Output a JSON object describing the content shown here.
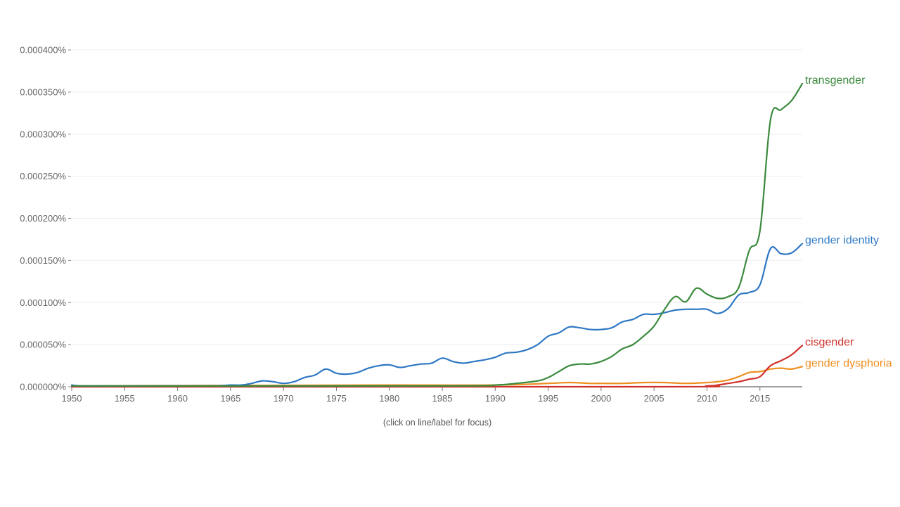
{
  "hint_text": "(click on line/label for focus)",
  "chart_data": {
    "type": "line",
    "title": "",
    "xlabel": "",
    "ylabel": "",
    "xlim": [
      1950,
      2019
    ],
    "ylim": [
      0,
      0.0004
    ],
    "grid": true,
    "legend": "labels at line ends, right",
    "y_ticks": [
      {
        "value": 0.0,
        "label": "0.000000%"
      },
      {
        "value": 5e-05,
        "label": "0.000050%"
      },
      {
        "value": 0.0001,
        "label": "0.000100%"
      },
      {
        "value": 0.00015,
        "label": "0.000150%"
      },
      {
        "value": 0.0002,
        "label": "0.000200%"
      },
      {
        "value": 0.00025,
        "label": "0.000250%"
      },
      {
        "value": 0.0003,
        "label": "0.000300%"
      },
      {
        "value": 0.00035,
        "label": "0.000350%"
      },
      {
        "value": 0.0004,
        "label": "0.000400%"
      }
    ],
    "x_ticks": [
      {
        "value": 1950,
        "label": "1950"
      },
      {
        "value": 1955,
        "label": "1955"
      },
      {
        "value": 1960,
        "label": "1960"
      },
      {
        "value": 1965,
        "label": "1965"
      },
      {
        "value": 1970,
        "label": "1970"
      },
      {
        "value": 1975,
        "label": "1975"
      },
      {
        "value": 1980,
        "label": "1980"
      },
      {
        "value": 1985,
        "label": "1985"
      },
      {
        "value": 1990,
        "label": "1990"
      },
      {
        "value": 1995,
        "label": "1995"
      },
      {
        "value": 2000,
        "label": "2000"
      },
      {
        "value": 2005,
        "label": "2005"
      },
      {
        "value": 2010,
        "label": "2010"
      },
      {
        "value": 2015,
        "label": "2015"
      }
    ],
    "series": [
      {
        "name": "transgender",
        "color": "#3b8a3e",
        "points": [
          [
            1950,
            1e-06
          ],
          [
            1985,
            1e-06
          ],
          [
            1990,
            2e-06
          ],
          [
            1992,
            4e-06
          ],
          [
            1994,
            7e-06
          ],
          [
            1995,
            1.1e-05
          ],
          [
            1996,
            1.8e-05
          ],
          [
            1997,
            2.5e-05
          ],
          [
            1998,
            2.7e-05
          ],
          [
            1999,
            2.7e-05
          ],
          [
            2000,
            3e-05
          ],
          [
            2001,
            3.6e-05
          ],
          [
            2002,
            4.5e-05
          ],
          [
            2003,
            5e-05
          ],
          [
            2004,
            6e-05
          ],
          [
            2005,
            7.2e-05
          ],
          [
            2006,
            9.2e-05
          ],
          [
            2007,
            0.000107
          ],
          [
            2008,
            0.000101
          ],
          [
            2009,
            0.000117
          ],
          [
            2010,
            0.00011
          ],
          [
            2011,
            0.000105
          ],
          [
            2012,
            0.000107
          ],
          [
            2013,
            0.000118
          ],
          [
            2014,
            0.000162
          ],
          [
            2015,
            0.000185
          ],
          [
            2016,
            0.000317
          ],
          [
            2017,
            0.000329
          ],
          [
            2018,
            0.00034
          ],
          [
            2019,
            0.00036
          ]
        ]
      },
      {
        "name": "gender identity",
        "color": "#2f78c4",
        "points": [
          [
            1950,
            2e-06
          ],
          [
            1951,
            1e-06
          ],
          [
            1955,
            1e-06
          ],
          [
            1963,
            1e-06
          ],
          [
            1965,
            2e-06
          ],
          [
            1966,
            2e-06
          ],
          [
            1967,
            4e-06
          ],
          [
            1968,
            7e-06
          ],
          [
            1969,
            6e-06
          ],
          [
            1970,
            4e-06
          ],
          [
            1971,
            6e-06
          ],
          [
            1972,
            1.1e-05
          ],
          [
            1973,
            1.4e-05
          ],
          [
            1974,
            2.1e-05
          ],
          [
            1975,
            1.6e-05
          ],
          [
            1976,
            1.5e-05
          ],
          [
            1977,
            1.7e-05
          ],
          [
            1978,
            2.2e-05
          ],
          [
            1979,
            2.5e-05
          ],
          [
            1980,
            2.6e-05
          ],
          [
            1981,
            2.3e-05
          ],
          [
            1982,
            2.5e-05
          ],
          [
            1983,
            2.7e-05
          ],
          [
            1984,
            2.8e-05
          ],
          [
            1985,
            3.4e-05
          ],
          [
            1986,
            3e-05
          ],
          [
            1987,
            2.8e-05
          ],
          [
            1988,
            3e-05
          ],
          [
            1989,
            3.2e-05
          ],
          [
            1990,
            3.5e-05
          ],
          [
            1991,
            4e-05
          ],
          [
            1992,
            4.1e-05
          ],
          [
            1993,
            4.4e-05
          ],
          [
            1994,
            5e-05
          ],
          [
            1995,
            6e-05
          ],
          [
            1996,
            6.4e-05
          ],
          [
            1997,
            7.1e-05
          ],
          [
            1998,
            7e-05
          ],
          [
            1999,
            6.8e-05
          ],
          [
            2000,
            6.8e-05
          ],
          [
            2001,
            7e-05
          ],
          [
            2002,
            7.7e-05
          ],
          [
            2003,
            8e-05
          ],
          [
            2004,
            8.6e-05
          ],
          [
            2005,
            8.6e-05
          ],
          [
            2006,
            8.8e-05
          ],
          [
            2007,
            9.1e-05
          ],
          [
            2008,
            9.2e-05
          ],
          [
            2009,
            9.2e-05
          ],
          [
            2010,
            9.2e-05
          ],
          [
            2011,
            8.7e-05
          ],
          [
            2012,
            9.3e-05
          ],
          [
            2013,
            0.000109
          ],
          [
            2014,
            0.000112
          ],
          [
            2015,
            0.000121
          ],
          [
            2016,
            0.000164
          ],
          [
            2017,
            0.000158
          ],
          [
            2018,
            0.000159
          ],
          [
            2019,
            0.00017
          ]
        ]
      },
      {
        "name": "cisgender",
        "color": "#d0312d",
        "points": [
          [
            1950,
            0.0
          ],
          [
            2005,
            0.0
          ],
          [
            2010,
            1e-06
          ],
          [
            2011,
            2e-06
          ],
          [
            2012,
            4e-06
          ],
          [
            2013,
            6e-06
          ],
          [
            2014,
            9e-06
          ],
          [
            2015,
            1.2e-05
          ],
          [
            2016,
            2.5e-05
          ],
          [
            2017,
            3.1e-05
          ],
          [
            2018,
            3.8e-05
          ],
          [
            2019,
            4.9e-05
          ]
        ]
      },
      {
        "name": "gender dysphoria",
        "color": "#ee8e1f",
        "points": [
          [
            1950,
            1e-06
          ],
          [
            1980,
            2e-06
          ],
          [
            1990,
            2e-06
          ],
          [
            1995,
            4e-06
          ],
          [
            1997,
            5e-06
          ],
          [
            1999,
            4e-06
          ],
          [
            2000,
            4e-06
          ],
          [
            2002,
            4e-06
          ],
          [
            2004,
            5e-06
          ],
          [
            2006,
            5e-06
          ],
          [
            2008,
            4e-06
          ],
          [
            2010,
            5e-06
          ],
          [
            2011,
            6e-06
          ],
          [
            2012,
            8e-06
          ],
          [
            2013,
            1.2e-05
          ],
          [
            2014,
            1.7e-05
          ],
          [
            2015,
            1.8e-05
          ],
          [
            2016,
            2.1e-05
          ],
          [
            2017,
            2.2e-05
          ],
          [
            2018,
            2.1e-05
          ],
          [
            2019,
            2.4e-05
          ]
        ]
      }
    ]
  }
}
